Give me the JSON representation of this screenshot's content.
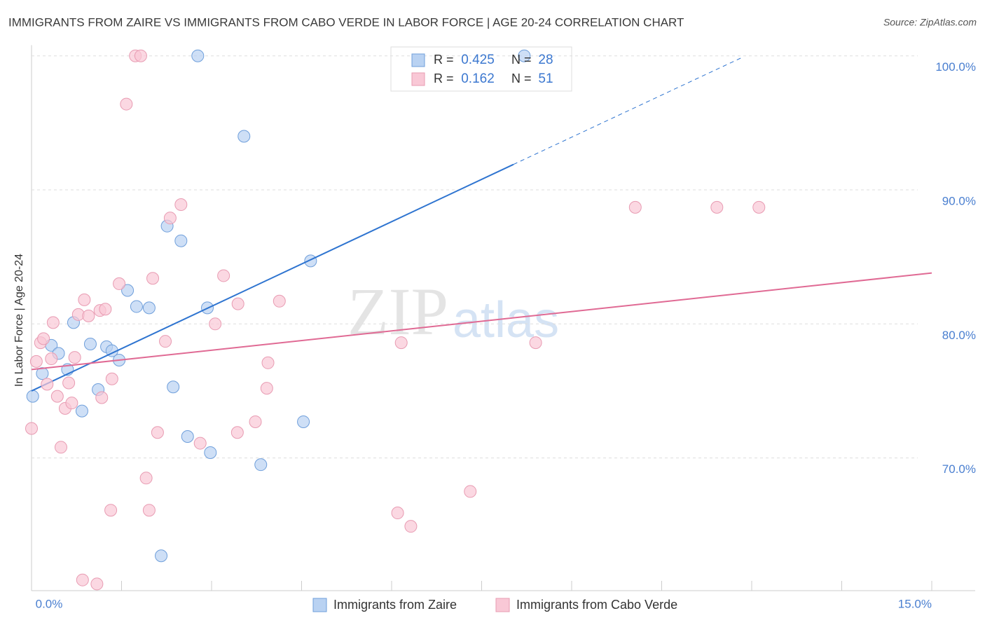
{
  "chart_data": {
    "type": "scatter",
    "title": "IMMIGRANTS FROM ZAIRE VS IMMIGRANTS FROM CABO VERDE IN LABOR FORCE | AGE 20-24 CORRELATION CHART",
    "source": "Source: ZipAtlas.com",
    "y_label": "In Labor Force | Age 20-24",
    "watermark": [
      "ZIP",
      "atlas"
    ],
    "xlim": [
      0,
      15
    ],
    "xticks": [
      {
        "value": 0,
        "label": "0.0%"
      },
      {
        "value": 15,
        "label": "15.0%"
      }
    ],
    "xtick_marks": [
      0,
      1.5,
      3,
      4.5,
      6,
      7.5,
      9,
      10.5,
      12,
      13.5,
      15
    ],
    "ylim": [
      60.1,
      100.8
    ],
    "yticks": [
      {
        "value": 70,
        "label": "70.0%"
      },
      {
        "value": 80,
        "label": "80.0%"
      },
      {
        "value": 90,
        "label": "90.0%"
      },
      {
        "value": 100,
        "label": "100.0%"
      }
    ],
    "grid": true,
    "legend_labels": {
      "r": "R =",
      "n": "N ="
    },
    "series": [
      {
        "name": "Immigrants from Zaire",
        "color": "#b9d2f2",
        "edge": "#6f9fdb",
        "line_color": "#2e74d0",
        "r": 0.425,
        "n": 28,
        "trend": {
          "x": [
            0,
            8.03
          ],
          "y": [
            75.0,
            91.9
          ],
          "dashed_x": [
            8.03,
            11.85
          ],
          "dashed_y": [
            91.9,
            99.9
          ]
        },
        "x": [
          0.02,
          0.18,
          0.33,
          0.45,
          0.6,
          0.7,
          0.84,
          0.98,
          1.11,
          1.25,
          1.34,
          1.46,
          1.6,
          1.75,
          1.96,
          2.16,
          2.26,
          2.36,
          2.49,
          2.6,
          2.77,
          2.93,
          2.98,
          3.54,
          3.82,
          4.53,
          4.65,
          8.21
        ],
        "values": [
          74.6,
          76.3,
          78.4,
          77.8,
          76.6,
          80.1,
          73.5,
          78.5,
          75.1,
          78.3,
          78.0,
          77.3,
          82.5,
          81.3,
          81.2,
          62.7,
          87.3,
          75.3,
          86.2,
          71.6,
          100.0,
          81.2,
          70.4,
          94.0,
          69.5,
          72.7,
          84.7,
          100.0
        ]
      },
      {
        "name": "Immigrants from Cabo Verde",
        "color": "#f9c8d6",
        "edge": "#e89bb2",
        "line_color": "#e06a94",
        "r": 0.162,
        "n": 51,
        "trend": {
          "x": [
            0,
            15
          ],
          "y": [
            76.6,
            83.8
          ]
        },
        "x": [
          0.0,
          0.08,
          0.15,
          0.2,
          0.26,
          0.33,
          0.36,
          0.43,
          0.49,
          0.56,
          0.62,
          0.67,
          0.72,
          0.78,
          0.88,
          0.95,
          0.85,
          1.09,
          1.14,
          1.17,
          1.23,
          1.32,
          1.34,
          1.46,
          1.58,
          1.73,
          1.82,
          1.91,
          1.96,
          2.02,
          2.1,
          2.23,
          2.31,
          2.49,
          2.81,
          3.06,
          3.2,
          3.43,
          3.44,
          3.73,
          3.92,
          3.94,
          4.13,
          6.1,
          6.16,
          6.32,
          7.31,
          8.4,
          10.06,
          11.42,
          12.12
        ],
        "values": [
          72.2,
          77.2,
          78.6,
          78.9,
          75.5,
          77.4,
          80.1,
          74.6,
          70.8,
          73.7,
          75.6,
          74.1,
          77.5,
          80.7,
          81.8,
          80.6,
          60.9,
          60.6,
          81.0,
          74.5,
          81.1,
          66.1,
          75.9,
          83.0,
          96.4,
          100.0,
          100.0,
          68.5,
          66.1,
          83.4,
          71.9,
          78.7,
          87.9,
          88.9,
          71.1,
          80.0,
          83.6,
          71.9,
          81.5,
          72.7,
          75.2,
          77.1,
          81.7,
          65.9,
          78.6,
          64.9,
          67.5,
          78.6,
          88.7,
          88.7,
          88.7
        ]
      }
    ]
  }
}
